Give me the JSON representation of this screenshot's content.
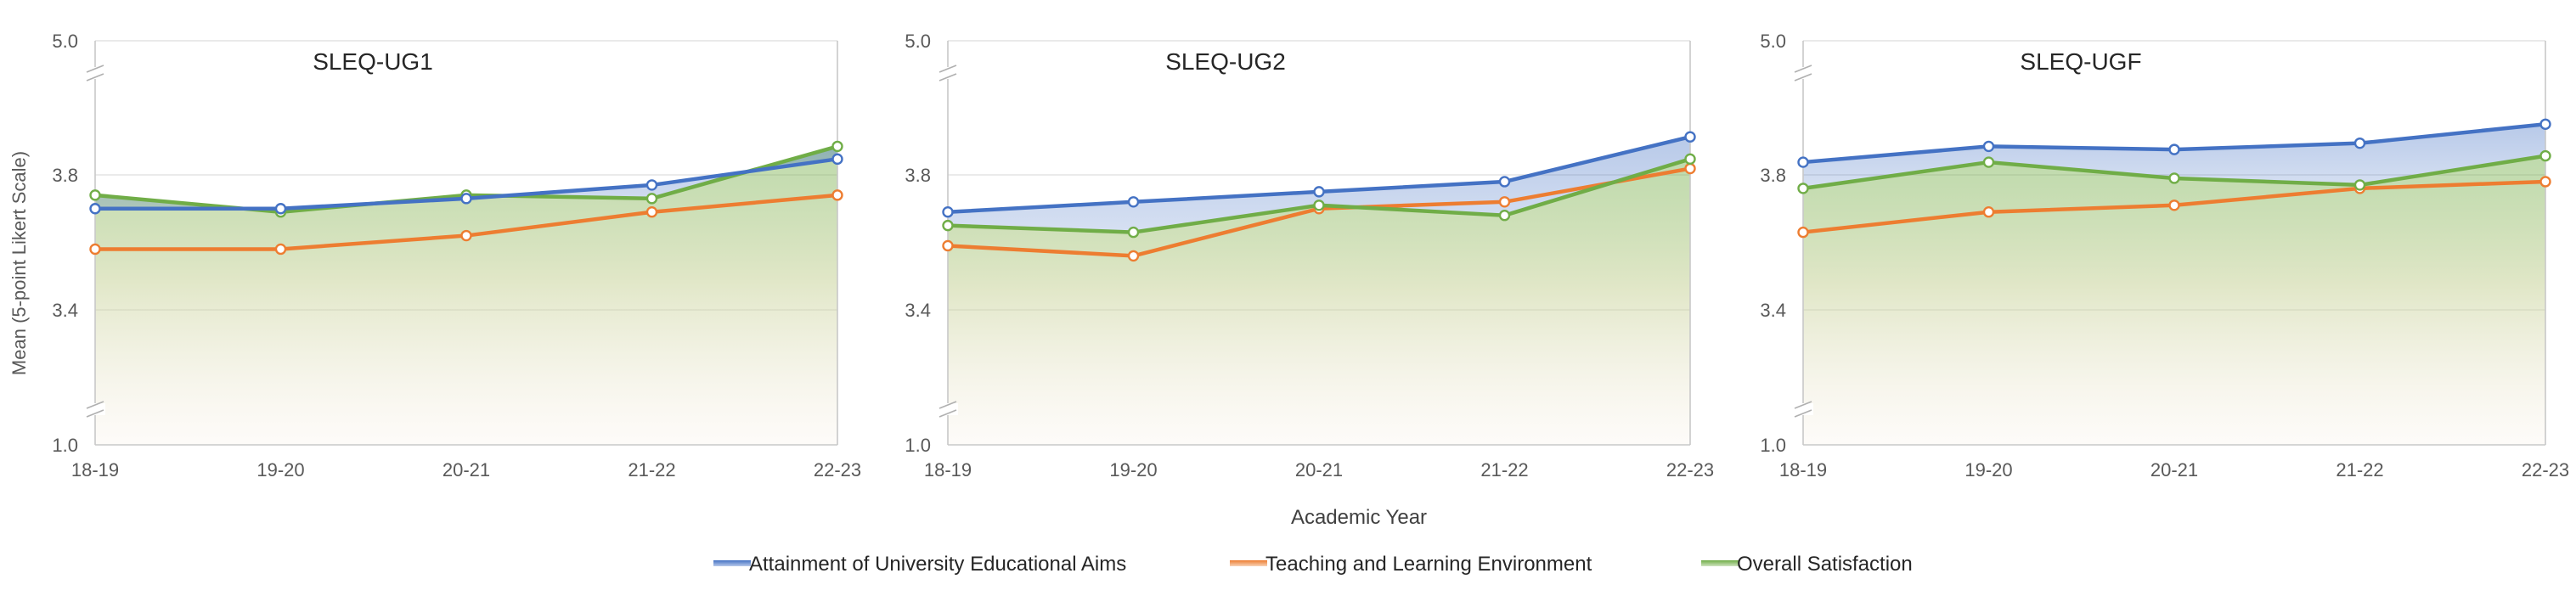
{
  "axis": {
    "ylabel": "Mean (5-point Likert Scale)",
    "xlabel": "Academic Year",
    "y_ticks": [
      "5.0",
      "3.8",
      "3.4",
      "1.0"
    ],
    "x_categories": [
      "18-19",
      "19-20",
      "20-21",
      "21-22",
      "22-23"
    ]
  },
  "legend": {
    "placement": "bottom-center",
    "items": [
      {
        "label": "Attainment of University Educational Aims",
        "color": "#4472C4"
      },
      {
        "label": "Teaching and Learning Environment",
        "color": "#ED7D31"
      },
      {
        "label": "Overall Satisfaction",
        "color": "#70AD47"
      }
    ]
  },
  "chart_data": [
    {
      "type": "line",
      "title": "SLEQ-UG1",
      "categories": [
        "18-19",
        "19-20",
        "20-21",
        "21-22",
        "22-23"
      ],
      "y_axis": {
        "ticks": [
          5.0,
          3.8,
          3.4,
          1.0
        ],
        "broken": true
      },
      "series": [
        {
          "name": "Attainment of University Educational Aims",
          "color": "#4472C4",
          "values": [
            3.7,
            3.7,
            3.73,
            3.77,
            3.85
          ]
        },
        {
          "name": "Teaching and Learning Environment",
          "color": "#ED7D31",
          "values": [
            3.58,
            3.58,
            3.62,
            3.69,
            3.74
          ]
        },
        {
          "name": "Overall Satisfaction",
          "color": "#70AD47",
          "values": [
            3.74,
            3.69,
            3.74,
            3.73,
            3.89
          ]
        }
      ]
    },
    {
      "type": "line",
      "title": "SLEQ-UG2",
      "categories": [
        "18-19",
        "19-20",
        "20-21",
        "21-22",
        "22-23"
      ],
      "y_axis": {
        "ticks": [
          5.0,
          3.8,
          3.4,
          1.0
        ],
        "broken": true
      },
      "series": [
        {
          "name": "Attainment of University Educational Aims",
          "color": "#4472C4",
          "values": [
            3.69,
            3.72,
            3.75,
            3.78,
            3.92
          ]
        },
        {
          "name": "Teaching and Learning Environment",
          "color": "#ED7D31",
          "values": [
            3.59,
            3.56,
            3.7,
            3.72,
            3.82
          ]
        },
        {
          "name": "Overall Satisfaction",
          "color": "#70AD47",
          "values": [
            3.65,
            3.63,
            3.71,
            3.68,
            3.85
          ]
        }
      ]
    },
    {
      "type": "line",
      "title": "SLEQ-UGF",
      "categories": [
        "18-19",
        "19-20",
        "20-21",
        "21-22",
        "22-23"
      ],
      "y_axis": {
        "ticks": [
          5.0,
          3.8,
          3.4,
          1.0
        ],
        "broken": true
      },
      "series": [
        {
          "name": "Attainment of University Educational Aims",
          "color": "#4472C4",
          "values": [
            3.84,
            3.89,
            3.88,
            3.9,
            3.96
          ]
        },
        {
          "name": "Teaching and Learning Environment",
          "color": "#ED7D31",
          "values": [
            3.63,
            3.69,
            3.71,
            3.76,
            3.78
          ]
        },
        {
          "name": "Overall Satisfaction",
          "color": "#70AD47",
          "values": [
            3.76,
            3.84,
            3.79,
            3.77,
            3.86
          ]
        }
      ]
    }
  ]
}
